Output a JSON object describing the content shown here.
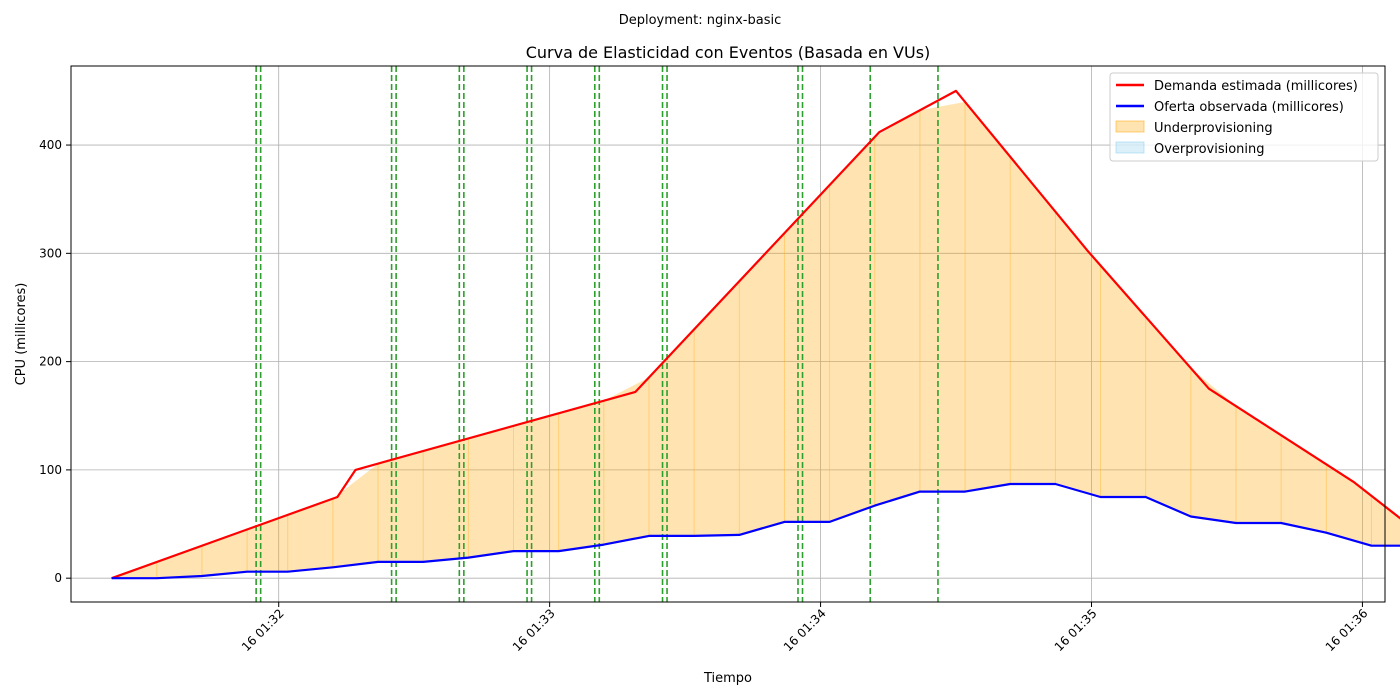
{
  "suptitle": "Deployment: nginx-basic",
  "chart_data": {
    "type": "line",
    "title": "Curva de Elasticidad con Eventos (Basada en VUs)",
    "xlabel": "Tiempo",
    "ylabel": "CPU (millicores)",
    "xlim_seconds": [
      1874,
      2165
    ],
    "ylim": [
      -22,
      473
    ],
    "x_ticks": [
      {
        "t": 1920,
        "label": "16 01:32"
      },
      {
        "t": 1980,
        "label": "16 01:33"
      },
      {
        "t": 2040,
        "label": "16 01:34"
      },
      {
        "t": 2100,
        "label": "16 01:35"
      },
      {
        "t": 2160,
        "label": "16 01:36"
      }
    ],
    "y_ticks": [
      0,
      100,
      200,
      300,
      400
    ],
    "grid": true,
    "legend_position": "top-right",
    "x_times": [
      "01:31:23",
      "01:31:33",
      "01:31:43",
      "01:31:53",
      "01:32:02",
      "01:32:12",
      "01:32:22",
      "01:32:32",
      "01:32:42",
      "01:32:52",
      "01:33:02",
      "01:33:12",
      "01:33:22",
      "01:33:32",
      "01:33:42",
      "01:33:52",
      "01:34:02",
      "01:34:12",
      "01:34:22",
      "01:34:32",
      "01:34:42",
      "01:34:52",
      "01:35:02",
      "01:35:12",
      "01:35:22",
      "01:35:32",
      "01:35:42",
      "01:35:52",
      "01:36:02",
      "01:36:12"
    ],
    "series": [
      {
        "name": "Demanda estimada (millicores)",
        "color": "#ff0000",
        "x": [
          1883,
          1933,
          1937,
          1999,
          2053,
          2070,
          2099,
          2126,
          2158,
          2174
        ],
        "y": [
          0,
          75,
          100,
          172,
          412,
          450,
          303,
          175,
          89,
          37
        ]
      },
      {
        "name": "Oferta observada (millicores)",
        "color": "#0000ff",
        "x": [
          1883,
          1893,
          1903,
          1913,
          1922,
          1932,
          1942,
          1952,
          1962,
          1972,
          1982,
          1992,
          2002,
          2012,
          2022,
          2032,
          2042,
          2052,
          2062,
          2072,
          2082,
          2092,
          2102,
          2112,
          2122,
          2132,
          2142,
          2152,
          2162,
          2172
        ],
        "y": [
          0,
          0,
          2,
          6,
          6,
          10,
          15,
          15,
          19,
          25,
          25,
          31,
          39,
          39,
          40,
          52,
          52,
          67,
          80,
          80,
          87,
          87,
          75,
          75,
          57,
          51,
          51,
          42,
          30,
          30
        ]
      }
    ],
    "fills": [
      {
        "name": "Underprovisioning",
        "color": "#ffa500",
        "opacity": 0.3
      },
      {
        "name": "Overprovisioning",
        "color": "#87ceeb",
        "opacity": 0.3
      }
    ],
    "event_lines": {
      "color": "#2ca02c",
      "style": "dashed",
      "x": [
        1915,
        1916,
        1945,
        1946,
        1960,
        1961,
        1975,
        1976,
        1990,
        1991,
        2005,
        2006,
        2035,
        2036,
        2051,
        2066
      ]
    }
  }
}
